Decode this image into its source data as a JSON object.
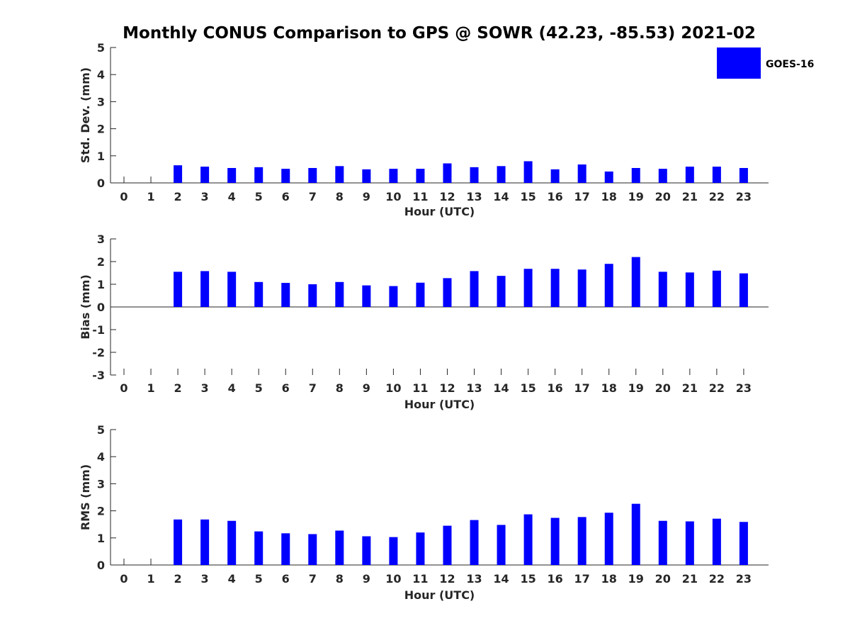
{
  "title": "Monthly CONUS Comparison to GPS @ SOWR (42.23, -85.53) 2021-02",
  "legend": {
    "label": "GOES-16",
    "color": "#0000ff"
  },
  "chart_data": [
    {
      "type": "bar",
      "ylabel": "Std. Dev. (mm)",
      "xlabel": "Hour (UTC)",
      "ylim": [
        0,
        5
      ],
      "yticks": [
        0,
        1,
        2,
        3,
        4,
        5
      ],
      "categories": [
        "0",
        "1",
        "2",
        "3",
        "4",
        "5",
        "6",
        "7",
        "8",
        "9",
        "10",
        "11",
        "12",
        "13",
        "14",
        "15",
        "16",
        "17",
        "18",
        "19",
        "20",
        "21",
        "22",
        "23"
      ],
      "series": [
        {
          "name": "GOES-16",
          "values": [
            null,
            null,
            0.65,
            0.6,
            0.55,
            0.58,
            0.52,
            0.55,
            0.62,
            0.5,
            0.52,
            0.52,
            0.72,
            0.58,
            0.62,
            0.8,
            0.5,
            0.68,
            0.42,
            0.55,
            0.52,
            0.6,
            0.6,
            0.55
          ]
        }
      ]
    },
    {
      "type": "bar",
      "ylabel": "Bias (mm)",
      "xlabel": "Hour (UTC)",
      "ylim": [
        -3,
        3
      ],
      "yticks": [
        -3,
        -2,
        -1,
        0,
        1,
        2,
        3
      ],
      "categories": [
        "0",
        "1",
        "2",
        "3",
        "4",
        "5",
        "6",
        "7",
        "8",
        "9",
        "10",
        "11",
        "12",
        "13",
        "14",
        "15",
        "16",
        "17",
        "18",
        "19",
        "20",
        "21",
        "22",
        "23"
      ],
      "series": [
        {
          "name": "GOES-16",
          "values": [
            null,
            null,
            1.55,
            1.58,
            1.55,
            1.1,
            1.06,
            1.0,
            1.1,
            0.95,
            0.92,
            1.07,
            1.27,
            1.58,
            1.37,
            1.68,
            1.68,
            1.65,
            1.9,
            2.2,
            1.55,
            1.52,
            1.6,
            1.48
          ]
        }
      ]
    },
    {
      "type": "bar",
      "ylabel": "RMS (mm)",
      "xlabel": "Hour (UTC)",
      "ylim": [
        0,
        5
      ],
      "yticks": [
        0,
        1,
        2,
        3,
        4,
        5
      ],
      "categories": [
        "0",
        "1",
        "2",
        "3",
        "4",
        "5",
        "6",
        "7",
        "8",
        "9",
        "10",
        "11",
        "12",
        "13",
        "14",
        "15",
        "16",
        "17",
        "18",
        "19",
        "20",
        "21",
        "22",
        "23"
      ],
      "series": [
        {
          "name": "GOES-16",
          "values": [
            null,
            null,
            1.68,
            1.68,
            1.63,
            1.24,
            1.17,
            1.14,
            1.27,
            1.06,
            1.03,
            1.2,
            1.45,
            1.66,
            1.48,
            1.87,
            1.74,
            1.77,
            1.93,
            2.26,
            1.63,
            1.61,
            1.71,
            1.59
          ]
        }
      ]
    }
  ]
}
